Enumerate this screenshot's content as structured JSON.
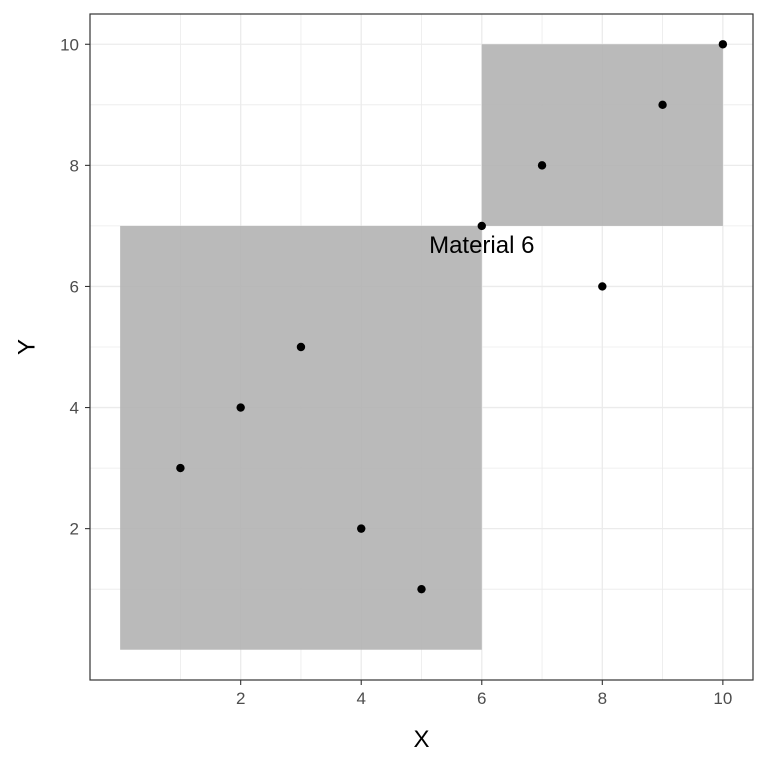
{
  "chart_data": {
    "type": "scatter",
    "title": "",
    "xlabel": "X",
    "ylabel": "Y",
    "xlim": [
      -0.5,
      10.5
    ],
    "ylim": [
      -0.5,
      10.5
    ],
    "x_ticks": [
      2,
      4,
      6,
      8,
      10
    ],
    "y_ticks": [
      2,
      4,
      6,
      8,
      10
    ],
    "grid": true,
    "legend": "none",
    "points": [
      {
        "x": 1,
        "y": 3
      },
      {
        "x": 2,
        "y": 4
      },
      {
        "x": 3,
        "y": 5
      },
      {
        "x": 4,
        "y": 2
      },
      {
        "x": 5,
        "y": 1
      },
      {
        "x": 6,
        "y": 7
      },
      {
        "x": 7,
        "y": 8
      },
      {
        "x": 8,
        "y": 6
      },
      {
        "x": 9,
        "y": 9
      },
      {
        "x": 10,
        "y": 10
      }
    ],
    "rectangles": [
      {
        "xmin": 0,
        "xmax": 6,
        "ymin": 0,
        "ymax": 7
      },
      {
        "xmin": 6,
        "xmax": 10,
        "ymin": 7,
        "ymax": 10
      }
    ],
    "annotations": [
      {
        "text": "Material 6",
        "x": 6,
        "y": 7
      }
    ],
    "colors": {
      "point": "#000000",
      "rect_fill": "#b3b3b3",
      "grid": "#ebebeb",
      "panel_border": "#333333"
    }
  }
}
